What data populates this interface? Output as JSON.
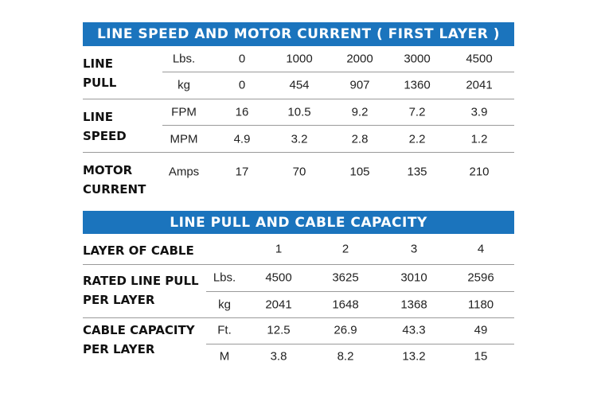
{
  "table1": {
    "title": "LINE SPEED AND MOTOR CURRENT ( FIRST LAYER )",
    "groups": [
      {
        "label": [
          "LINE",
          "PULL"
        ],
        "rows": [
          {
            "unit": "Lbs.",
            "values": [
              "0",
              "1000",
              "2000",
              "3000",
              "4500"
            ]
          },
          {
            "unit": "kg",
            "values": [
              "0",
              "454",
              "907",
              "1360",
              "2041"
            ]
          }
        ]
      },
      {
        "label": [
          "LINE",
          "SPEED"
        ],
        "rows": [
          {
            "unit": "FPM",
            "values": [
              "16",
              "10.5",
              "9.2",
              "7.2",
              "3.9"
            ]
          },
          {
            "unit": "MPM",
            "values": [
              "4.9",
              "3.2",
              "2.8",
              "2.2",
              "1.2"
            ]
          }
        ]
      },
      {
        "label": [
          "MOTOR",
          "CURRENT"
        ],
        "rows": [
          {
            "unit": "Amps",
            "values": [
              "17",
              "70",
              "105",
              "135",
              "210"
            ]
          }
        ]
      }
    ]
  },
  "table2": {
    "title": "LINE PULL AND CABLE CAPACITY",
    "header": {
      "label": "LAYER OF CABLE",
      "values": [
        "1",
        "2",
        "3",
        "4"
      ]
    },
    "groups": [
      {
        "label": [
          "RATED LINE PULL",
          "PER LAYER"
        ],
        "rows": [
          {
            "unit": "Lbs.",
            "values": [
              "4500",
              "3625",
              "3010",
              "2596"
            ]
          },
          {
            "unit": "kg",
            "values": [
              "2041",
              "1648",
              "1368",
              "1180"
            ]
          }
        ]
      },
      {
        "label": [
          "CABLE CAPACITY",
          "PER LAYER"
        ],
        "rows": [
          {
            "unit": "Ft.",
            "values": [
              "12.5",
              "26.9",
              "43.3",
              "49"
            ]
          },
          {
            "unit": "M",
            "values": [
              "3.8",
              "8.2",
              "13.2",
              "15"
            ]
          }
        ]
      }
    ]
  }
}
